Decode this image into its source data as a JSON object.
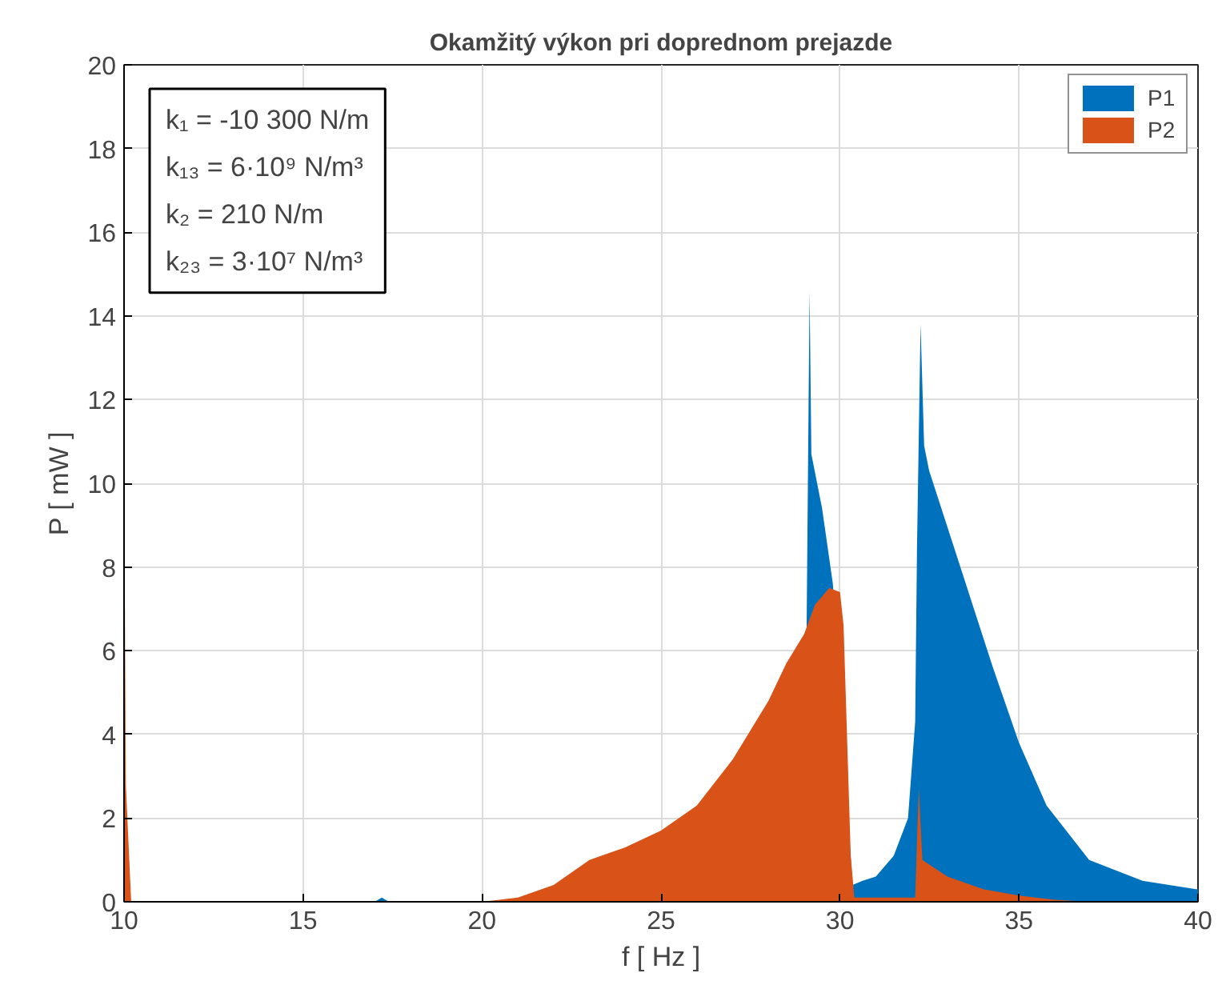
{
  "chart_data": {
    "type": "area",
    "title": "Okamžitý výkon pri doprednom prejazde",
    "xlabel": "f [ Hz ]",
    "ylabel": "P [ mW ]",
    "xlim": [
      10,
      40
    ],
    "ylim": [
      0,
      20
    ],
    "xticks": [
      10,
      15,
      20,
      25,
      30,
      35,
      40
    ],
    "yticks": [
      0,
      2,
      4,
      6,
      8,
      10,
      12,
      14,
      16,
      18,
      20
    ],
    "grid": true,
    "legend": "top right",
    "annotations": [
      "k₁ = -10 300 N/m",
      "k₁₃ = 6·10⁹ N/m³",
      "k₂ = 210 N/m",
      "k₂₃ = 3·10⁷ N/m³"
    ],
    "series": [
      {
        "name": "P1",
        "color": "#0072bd",
        "x": [
          10,
          10.01,
          10.03,
          17.0,
          17.2,
          17.4,
          29.0,
          29.15,
          29.2,
          29.5,
          29.8,
          30.35,
          30.63,
          31.0,
          31.5,
          31.9,
          32.1,
          32.15,
          32.25,
          32.35,
          32.49,
          33.4,
          34.27,
          35.0,
          35.77,
          36.96,
          38.45,
          39.94,
          40
        ],
        "values": [
          20,
          2,
          0,
          0,
          0.1,
          0,
          0,
          14.6,
          10.7,
          9.4,
          7.6,
          0.4,
          0.5,
          0.6,
          1.1,
          2.0,
          4.3,
          8.4,
          13.8,
          10.9,
          10.3,
          7.9,
          5.6,
          3.8,
          2.3,
          1.0,
          0.5,
          0.3,
          0.3
        ]
      },
      {
        "name": "P2",
        "color": "#d95319",
        "x": [
          10,
          10.05,
          10.2,
          20,
          21,
          22,
          23,
          24,
          25,
          26,
          27,
          28,
          28.5,
          29,
          29.3,
          29.7,
          30.0,
          30.1,
          30.3,
          30.4,
          32.1,
          32.2,
          32.3,
          33,
          34,
          35,
          36,
          37,
          40
        ],
        "values": [
          11.2,
          2.8,
          0,
          0,
          0.1,
          0.4,
          1.0,
          1.3,
          1.7,
          2.3,
          3.4,
          4.8,
          5.7,
          6.4,
          7.1,
          7.5,
          7.4,
          6.6,
          1.1,
          0.1,
          0.1,
          2.7,
          1.0,
          0.6,
          0.3,
          0.15,
          0.05,
          0,
          0
        ]
      }
    ]
  }
}
